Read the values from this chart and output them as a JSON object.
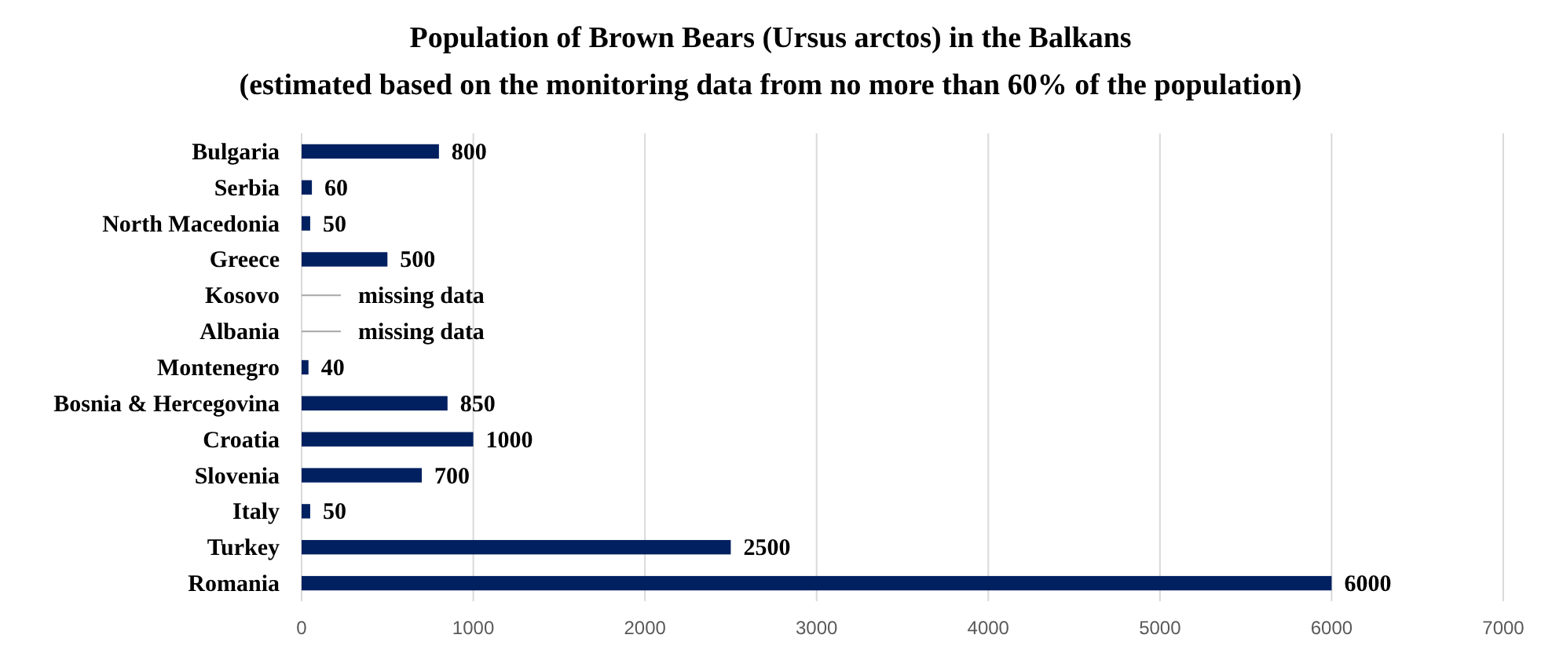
{
  "chart_data": {
    "type": "bar",
    "orientation": "horizontal",
    "title": "Population of Brown Bears (Ursus arctos) in the Balkans",
    "subtitle": "(estimated based on the monitoring data from no more than 60% of the population)",
    "categories": [
      "Bulgaria",
      "Serbia",
      "North Macedonia",
      "Greece",
      "Kosovo",
      "Albania",
      "Montenegro",
      "Bosnia & Hercegovina",
      "Croatia",
      "Slovenia",
      "Italy",
      "Turkey",
      "Romania"
    ],
    "values": [
      800,
      60,
      50,
      500,
      null,
      null,
      40,
      850,
      1000,
      700,
      50,
      2500,
      6000
    ],
    "value_labels": [
      "800",
      "60",
      "50",
      "500",
      "missing data",
      "missing data",
      "40",
      "850",
      "1000",
      "700",
      "50",
      "2500",
      "6000"
    ],
    "color": "#002060",
    "xlim": [
      0,
      7000
    ],
    "xticks": [
      0,
      1000,
      2000,
      3000,
      4000,
      5000,
      6000,
      7000
    ],
    "grid": "x"
  }
}
